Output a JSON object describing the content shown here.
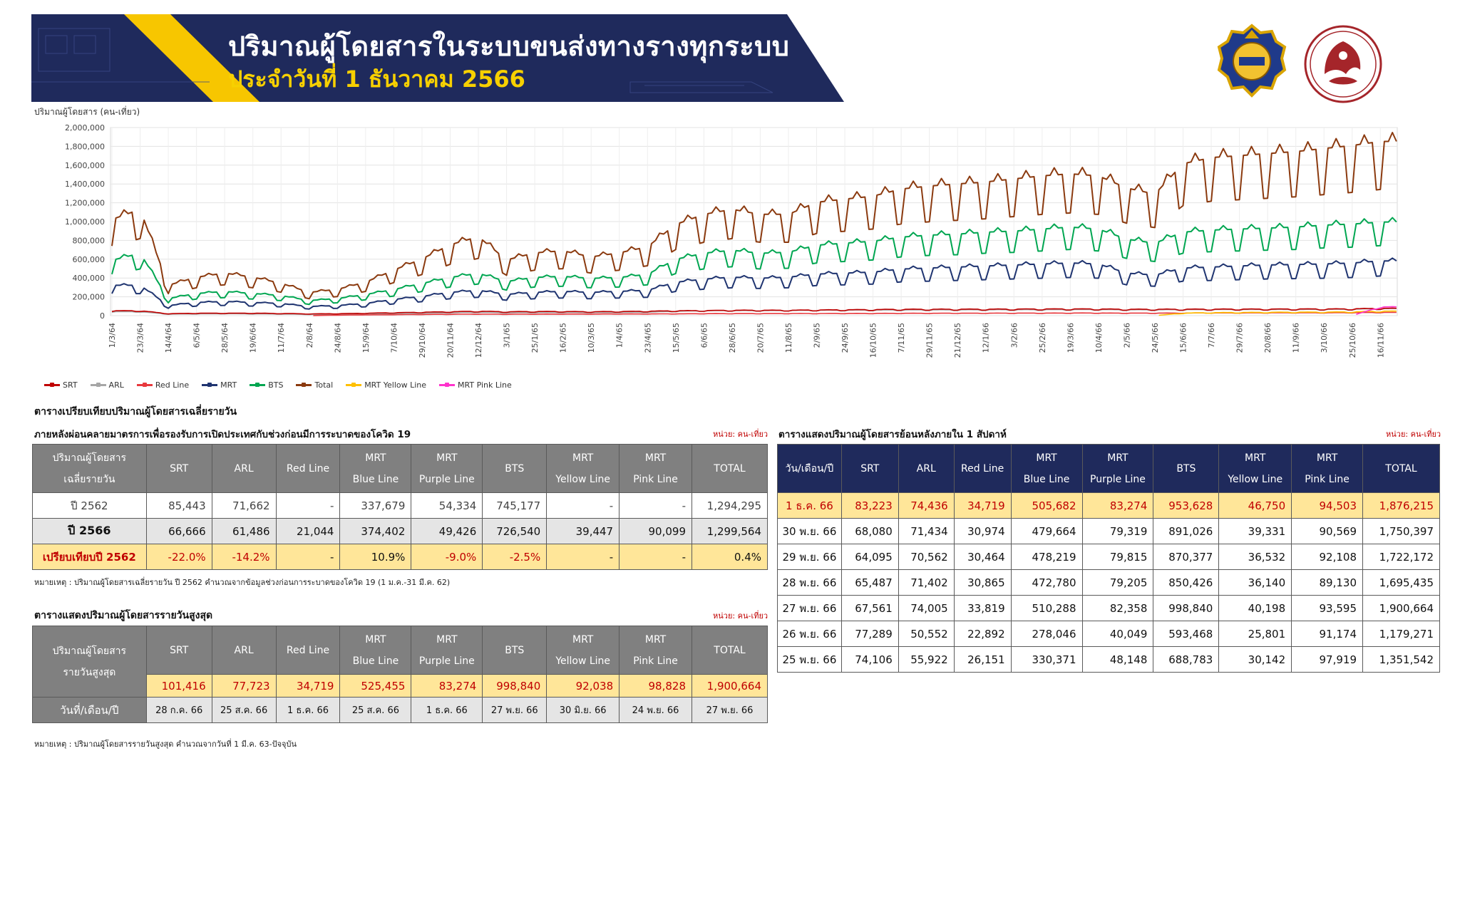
{
  "header": {
    "title": "ปริมาณผู้โดยสารในระบบขนส่งทางรางทุกระบบ",
    "subtitle": "ประจำวันที่ 1 ธันวาคม 2566"
  },
  "colors": {
    "banner": "#1f2a5c",
    "accent_yellow": "#f7c600",
    "SRT": "#c00000",
    "ARL": "#a6a6a6",
    "Red Line": "#e8383d",
    "MRT": "#1f3470",
    "BTS": "#00a651",
    "Total": "#8b3a0f",
    "MRT Yellow Line": "#ffc000",
    "MRT Pink Line": "#ff33cc"
  },
  "chart_data": {
    "type": "line",
    "ylabel": "ปริมาณผู้โดยสาร (คน-เที่ยว)",
    "ylim": [
      0,
      2000000
    ],
    "yticks": [
      "0",
      "200,000",
      "400,000",
      "600,000",
      "800,000",
      "1,000,000",
      "1,200,000",
      "1,400,000",
      "1,600,000",
      "1,800,000",
      "2,000,000"
    ],
    "x_tick_labels": [
      "1/3/64",
      "23/3/64",
      "14/4/64",
      "6/5/64",
      "28/5/64",
      "19/6/64",
      "11/7/64",
      "2/8/64",
      "24/8/64",
      "15/9/64",
      "7/10/64",
      "29/10/64",
      "20/11/64",
      "12/12/64",
      "3/1/65",
      "25/1/65",
      "16/2/65",
      "10/3/65",
      "1/4/65",
      "23/4/65",
      "15/5/65",
      "6/6/65",
      "28/6/65",
      "20/7/65",
      "11/8/65",
      "2/9/65",
      "24/9/65",
      "16/10/65",
      "7/11/65",
      "29/11/65",
      "21/12/65",
      "12/1/66",
      "3/2/66",
      "25/2/66",
      "19/3/66",
      "10/4/66",
      "2/5/66",
      "24/5/66",
      "15/6/66",
      "7/7/66",
      "29/7/66",
      "20/8/66",
      "11/9/66",
      "3/10/66",
      "25/10/66",
      "16/11/66"
    ],
    "legend": [
      "SRT",
      "ARL",
      "Red Line",
      "MRT",
      "BTS",
      "Total",
      "MRT Yellow Line",
      "MRT Pink Line"
    ],
    "series_levels_at_ticks": {
      "Total": [
        950000,
        1050000,
        300000,
        380000,
        420000,
        380000,
        320000,
        230000,
        260000,
        330000,
        450000,
        560000,
        700000,
        780000,
        550000,
        620000,
        640000,
        580000,
        620000,
        680000,
        900000,
        1000000,
        1050000,
        1000000,
        1000000,
        1120000,
        1150000,
        1180000,
        1250000,
        1280000,
        1300000,
        1320000,
        1350000,
        1380000,
        1400000,
        1380000,
        1260000,
        1200000,
        1500000,
        1560000,
        1580000,
        1600000,
        1620000,
        1650000,
        1680000,
        1720000
      ],
      "BTS": [
        550000,
        620000,
        170000,
        220000,
        240000,
        220000,
        200000,
        150000,
        170000,
        210000,
        260000,
        320000,
        380000,
        420000,
        340000,
        380000,
        390000,
        370000,
        380000,
        410000,
        560000,
        620000,
        650000,
        620000,
        630000,
        700000,
        720000,
        740000,
        780000,
        800000,
        810000,
        830000,
        840000,
        860000,
        880000,
        860000,
        760000,
        720000,
        830000,
        850000,
        860000,
        870000,
        880000,
        900000,
        910000,
        930000
      ],
      "MRT": [
        300000,
        300000,
        100000,
        130000,
        140000,
        130000,
        120000,
        90000,
        100000,
        120000,
        160000,
        190000,
        230000,
        250000,
        210000,
        230000,
        240000,
        230000,
        240000,
        250000,
        330000,
        360000,
        380000,
        370000,
        380000,
        410000,
        420000,
        430000,
        460000,
        470000,
        480000,
        490000,
        500000,
        510000,
        520000,
        510000,
        420000,
        400000,
        470000,
        480000,
        490000,
        500000,
        505000,
        510000,
        520000,
        540000
      ],
      "SRT": [
        50000,
        50000,
        20000,
        25000,
        25000,
        25000,
        22000,
        18000,
        20000,
        25000,
        30000,
        35000,
        40000,
        45000,
        40000,
        42000,
        42000,
        40000,
        42000,
        45000,
        50000,
        52000,
        55000,
        55000,
        55000,
        58000,
        60000,
        62000,
        65000,
        65000,
        66000,
        66000,
        67000,
        68000,
        68000,
        68000,
        65000,
        65000,
        66000,
        66000,
        67000,
        67000,
        68000,
        68000,
        70000,
        75000
      ],
      "ARL": [
        40000,
        40000,
        15000,
        18000,
        20000,
        18000,
        16000,
        12000,
        14000,
        18000,
        22000,
        25000,
        30000,
        35000,
        30000,
        32000,
        33000,
        32000,
        33000,
        35000,
        45000,
        50000,
        52000,
        52000,
        53000,
        55000,
        56000,
        57000,
        58000,
        59000,
        60000,
        60000,
        61000,
        61000,
        62000,
        62000,
        60000,
        60000,
        61000,
        62000,
        62000,
        63000,
        63000,
        64000,
        65000,
        72000
      ],
      "Red Line": [
        0,
        0,
        0,
        0,
        0,
        0,
        0,
        0,
        5000,
        8000,
        10000,
        12000,
        14000,
        15000,
        14000,
        15000,
        16000,
        16000,
        17000,
        17000,
        19000,
        20000,
        21000,
        21000,
        22000,
        22000,
        23000,
        23000,
        24000,
        24000,
        25000,
        25000,
        26000,
        26000,
        27000,
        27000,
        26000,
        26000,
        27000,
        28000,
        28000,
        29000,
        30000,
        30000,
        31000,
        33000
      ],
      "MRT Yellow Line": [
        0,
        0,
        0,
        0,
        0,
        0,
        0,
        0,
        0,
        0,
        0,
        0,
        0,
        0,
        0,
        0,
        0,
        0,
        0,
        0,
        0,
        0,
        0,
        0,
        0,
        0,
        0,
        0,
        0,
        0,
        0,
        0,
        0,
        0,
        0,
        0,
        0,
        0,
        25000,
        30000,
        32000,
        34000,
        35000,
        36000,
        38000,
        45000
      ],
      "MRT Pink Line": [
        0,
        0,
        0,
        0,
        0,
        0,
        0,
        0,
        0,
        0,
        0,
        0,
        0,
        0,
        0,
        0,
        0,
        0,
        0,
        0,
        0,
        0,
        0,
        0,
        0,
        0,
        0,
        0,
        0,
        0,
        0,
        0,
        0,
        0,
        0,
        0,
        0,
        0,
        0,
        0,
        0,
        0,
        0,
        0,
        0,
        90000
      ]
    }
  },
  "compare_table": {
    "heading": "ตารางเปรียบเทียบปริมาณผู้โดยสารเฉลี่ยรายวัน",
    "subheading": "ภายหลังผ่อนคลายมาตรการเพื่อรองรับการเปิดประเทศกับช่วงก่อนมีการระบาดของโควิด 19",
    "unit": "หน่วย: คน-เที่ยว",
    "corner": [
      "ปริมาณผู้โดยสาร",
      "เฉลี่ยรายวัน"
    ],
    "columns": [
      [
        "SRT"
      ],
      [
        "ARL"
      ],
      [
        "Red Line"
      ],
      [
        "MRT",
        "Blue Line"
      ],
      [
        "MRT",
        "Purple Line"
      ],
      [
        "BTS"
      ],
      [
        "MRT",
        "Yellow Line"
      ],
      [
        "MRT",
        "Pink Line"
      ],
      [
        "TOTAL"
      ]
    ],
    "rows": [
      {
        "label": "ปี 2562",
        "values": [
          "85,443",
          "71,662",
          "-",
          "337,679",
          "54,334",
          "745,177",
          "-",
          "-",
          "1,294,295"
        ]
      },
      {
        "label": "ปี 2566",
        "values": [
          "66,666",
          "61,486",
          "21,044",
          "374,402",
          "49,426",
          "726,540",
          "39,447",
          "90,099",
          "1,299,564"
        ]
      },
      {
        "label": "เปรียบเทียบปี 2562",
        "values": [
          "-22.0%",
          "-14.2%",
          "-",
          "10.9%",
          "-9.0%",
          "-2.5%",
          "-",
          "-",
          "0.4%"
        ]
      }
    ],
    "note": "หมายเหตุ : ปริมาณผู้โดยสารเฉลี่ยรายวัน ปี 2562 คำนวณจากข้อมูลช่วงก่อนการระบาดของโควิด 19 (1 ม.ค.-31 มี.ค. 62)"
  },
  "max_table": {
    "heading": "ตารางแสดงปริมาณผู้โดยสารรายวันสูงสุด",
    "unit": "หน่วย: คน-เที่ยว",
    "corner": [
      "ปริมาณผู้โดยสาร",
      "รายวันสูงสุด"
    ],
    "values": [
      "101,416",
      "77,723",
      "34,719",
      "525,455",
      "83,274",
      "998,840",
      "92,038",
      "98,828",
      "1,900,664"
    ],
    "date_label": "วันที่/เดือน/ปี",
    "dates": [
      "28 ก.ค. 66",
      "25 ส.ค. 66",
      "1 ธ.ค. 66",
      "25 ส.ค. 66",
      "1 ธ.ค. 66",
      "27 พ.ย. 66",
      "30 มิ.ย. 66",
      "24 พ.ย. 66",
      "27 พ.ย. 66"
    ],
    "note": "หมายเหตุ : ปริมาณผู้โดยสารรายวันสูงสุด คำนวณจากวันที่ 1 มี.ค. 63-ปัจจุบัน"
  },
  "week_table": {
    "heading": "ตารางแสดงปริมาณผู้โดยสารย้อนหลังภายใน 1 สัปดาห์",
    "unit": "หน่วย: คน-เที่ยว",
    "corner": "วัน/เดือน/ปี",
    "rows": [
      {
        "label": "1 ธ.ค. 66",
        "values": [
          "83,223",
          "74,436",
          "34,719",
          "505,682",
          "83,274",
          "953,628",
          "46,750",
          "94,503",
          "1,876,215"
        ]
      },
      {
        "label": "30 พ.ย. 66",
        "values": [
          "68,080",
          "71,434",
          "30,974",
          "479,664",
          "79,319",
          "891,026",
          "39,331",
          "90,569",
          "1,750,397"
        ]
      },
      {
        "label": "29 พ.ย. 66",
        "values": [
          "64,095",
          "70,562",
          "30,464",
          "478,219",
          "79,815",
          "870,377",
          "36,532",
          "92,108",
          "1,722,172"
        ]
      },
      {
        "label": "28 พ.ย. 66",
        "values": [
          "65,487",
          "71,402",
          "30,865",
          "472,780",
          "79,205",
          "850,426",
          "36,140",
          "89,130",
          "1,695,435"
        ]
      },
      {
        "label": "27 พ.ย. 66",
        "values": [
          "67,561",
          "74,005",
          "33,819",
          "510,288",
          "82,358",
          "998,840",
          "40,198",
          "93,595",
          "1,900,664"
        ]
      },
      {
        "label": "26 พ.ย. 66",
        "values": [
          "77,289",
          "50,552",
          "22,892",
          "278,046",
          "40,049",
          "593,468",
          "25,801",
          "91,174",
          "1,179,271"
        ]
      },
      {
        "label": "25 พ.ย. 66",
        "values": [
          "74,106",
          "55,922",
          "26,151",
          "330,371",
          "48,148",
          "688,783",
          "30,142",
          "97,919",
          "1,351,542"
        ]
      }
    ]
  }
}
